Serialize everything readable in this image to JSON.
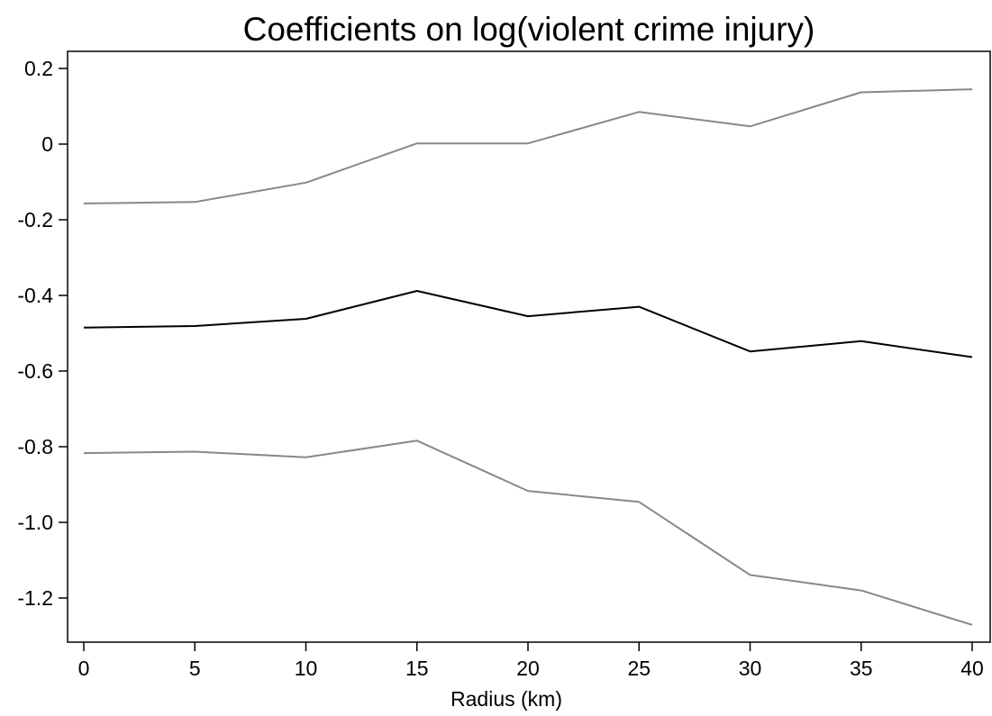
{
  "chart_data": {
    "type": "line",
    "title": "Coefficients on log(violent crime injury)",
    "xlabel": "Radius (km)",
    "ylabel": "",
    "x": [
      0,
      5,
      10,
      15,
      20,
      25,
      30,
      35,
      40
    ],
    "xlim": [
      0,
      40
    ],
    "ylim": [
      -1.3,
      0.2
    ],
    "xticks": [
      0,
      5,
      10,
      15,
      20,
      25,
      30,
      35,
      40
    ],
    "xtick_labels": [
      "0",
      "5",
      "10",
      "15",
      "20",
      "25",
      "30",
      "35",
      "40"
    ],
    "yticks": [
      0.2,
      0,
      -0.2,
      -0.4,
      -0.6,
      -0.8,
      -1.0,
      -1.2
    ],
    "ytick_labels": [
      "0.2",
      "0",
      "-0.2",
      "-0.4",
      "-0.6",
      "-0.8",
      "-1.0",
      "-1.2"
    ],
    "grid": false,
    "legend": "none",
    "series": [
      {
        "color": "#888888",
        "values": [
          -0.157,
          -0.153,
          -0.102,
          0.002,
          0.002,
          0.085,
          0.047,
          0.137,
          0.145
        ]
      },
      {
        "color": "#000000",
        "values": [
          -0.485,
          -0.481,
          -0.462,
          -0.388,
          -0.455,
          -0.43,
          -0.548,
          -0.521,
          -0.563
        ]
      },
      {
        "color": "#888888",
        "values": [
          -0.817,
          -0.813,
          -0.828,
          -0.784,
          -0.917,
          -0.946,
          -1.139,
          -1.18,
          -1.271
        ]
      }
    ]
  }
}
